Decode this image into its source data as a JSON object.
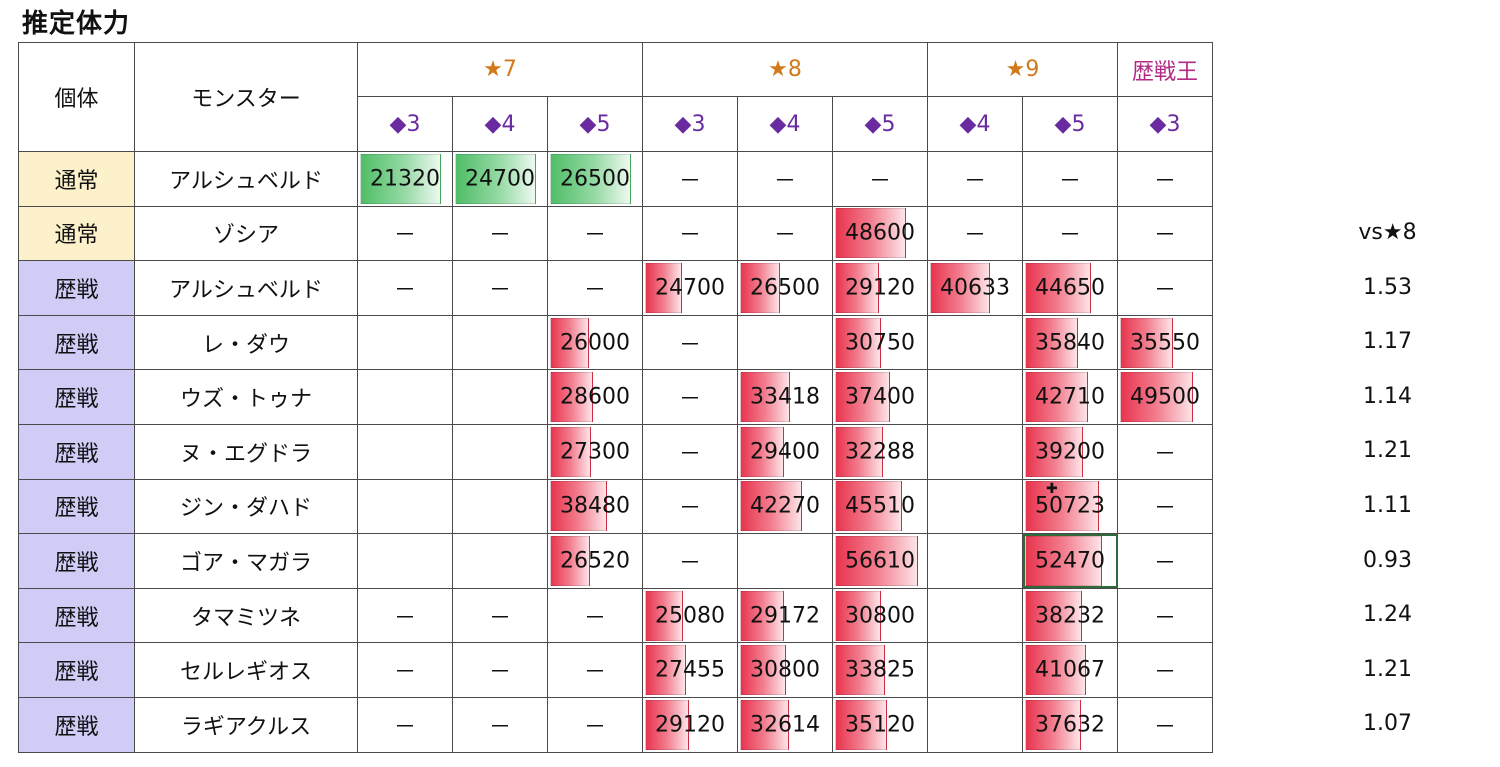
{
  "title": "推定体力",
  "header": {
    "col_type": "個体",
    "col_monster": "モンスター",
    "groups": [
      {
        "label": "★7",
        "span": 3,
        "color": "star"
      },
      {
        "label": "★8",
        "span": 3,
        "color": "star"
      },
      {
        "label": "★9",
        "span": 2,
        "color": "star"
      },
      {
        "label": "歴戦王",
        "span": 1,
        "color": "king"
      }
    ],
    "subs": [
      "◆3",
      "◆4",
      "◆5",
      "◆3",
      "◆4",
      "◆5",
      "◆4",
      "◆5",
      "◆3"
    ]
  },
  "bar_max": 56610,
  "rows": [
    {
      "type": "通常",
      "kind": "normal",
      "monster": "アルシュベルド",
      "cells": [
        "21320",
        "24700",
        "26500",
        "－",
        "－",
        "－",
        "－",
        "－",
        "－"
      ],
      "bar": "green"
    },
    {
      "type": "通常",
      "kind": "normal",
      "monster": "ゾシア",
      "cells": [
        "－",
        "－",
        "－",
        "－",
        "－",
        "48600",
        "－",
        "－",
        "－"
      ],
      "bar": "red"
    },
    {
      "type": "歴戦",
      "kind": "veteran",
      "monster": "アルシュベルド",
      "cells": [
        "－",
        "－",
        "－",
        "24700",
        "26500",
        "29120",
        "40633",
        "44650",
        "－"
      ],
      "bar": "red"
    },
    {
      "type": "歴戦",
      "kind": "veteran",
      "monster": "レ・ダウ",
      "cells": [
        "",
        "",
        "26000",
        "－",
        "",
        "30750",
        "",
        "35840",
        "35550"
      ],
      "bar": "red"
    },
    {
      "type": "歴戦",
      "kind": "veteran",
      "monster": "ウズ・トゥナ",
      "cells": [
        "",
        "",
        "28600",
        "－",
        "33418",
        "37400",
        "",
        "42710",
        "49500"
      ],
      "bar": "red"
    },
    {
      "type": "歴戦",
      "kind": "veteran",
      "monster": "ヌ・エグドラ",
      "cells": [
        "",
        "",
        "27300",
        "－",
        "29400",
        "32288",
        "",
        "39200",
        "－"
      ],
      "bar": "red"
    },
    {
      "type": "歴戦",
      "kind": "veteran",
      "monster": "ジン・ダハド",
      "cells": [
        "",
        "",
        "38480",
        "－",
        "42270",
        "45510",
        "",
        "50723",
        "－"
      ],
      "bar": "red"
    },
    {
      "type": "歴戦",
      "kind": "veteran",
      "monster": "ゴア・マガラ",
      "cells": [
        "",
        "",
        "26520",
        "－",
        "",
        "56610",
        "",
        "52470",
        "－"
      ],
      "bar": "red",
      "selected": 7
    },
    {
      "type": "歴戦",
      "kind": "veteran",
      "monster": "タマミツネ",
      "cells": [
        "－",
        "－",
        "－",
        "25080",
        "29172",
        "30800",
        "",
        "38232",
        "－"
      ],
      "bar": "red"
    },
    {
      "type": "歴戦",
      "kind": "veteran",
      "monster": "セルレギオス",
      "cells": [
        "－",
        "－",
        "－",
        "27455",
        "30800",
        "33825",
        "",
        "41067",
        "－"
      ],
      "bar": "red"
    },
    {
      "type": "歴戦",
      "kind": "veteran",
      "monster": "ラギアクルス",
      "cells": [
        "－",
        "－",
        "－",
        "29120",
        "32614",
        "35120",
        "",
        "37632",
        "－"
      ],
      "bar": "red"
    }
  ],
  "ratio": {
    "header": "vs★8",
    "values": [
      "1.53",
      "1.17",
      "1.14",
      "1.21",
      "1.11",
      "0.93",
      "1.24",
      "1.21",
      "1.07"
    ]
  },
  "colors": {
    "normal_bg": "#fdf1cc",
    "veteran_bg": "#cfccf6",
    "star": "#d07a1a",
    "king": "#b02a86",
    "diamond": "#6a2aa0",
    "bar_red": "#e8344e",
    "bar_green": "#4fbe67"
  }
}
